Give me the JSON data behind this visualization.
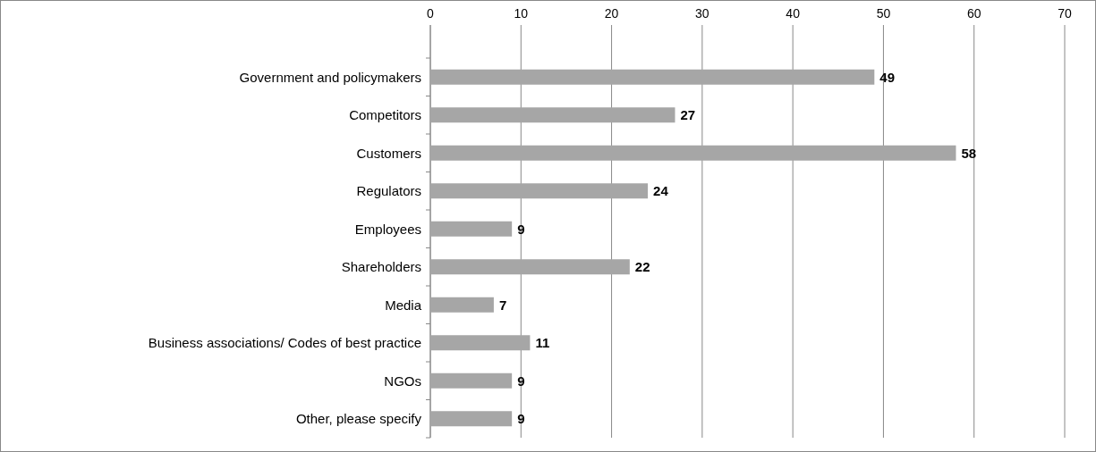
{
  "chart_data": {
    "type": "bar",
    "orientation": "horizontal",
    "categories": [
      "Government and policymakers",
      "Competitors",
      "Customers",
      "Regulators",
      "Employees",
      "Shareholders",
      "Media",
      "Business associations/ Codes of best practice",
      "NGOs",
      "Other, please specify"
    ],
    "values": [
      49,
      27,
      58,
      24,
      9,
      22,
      7,
      11,
      9,
      9
    ],
    "color": "#a6a6a6",
    "xlim": [
      0,
      70
    ],
    "xticks": [
      0,
      10,
      20,
      30,
      40,
      50,
      60,
      70
    ],
    "grid": "x",
    "data_labels": true
  }
}
